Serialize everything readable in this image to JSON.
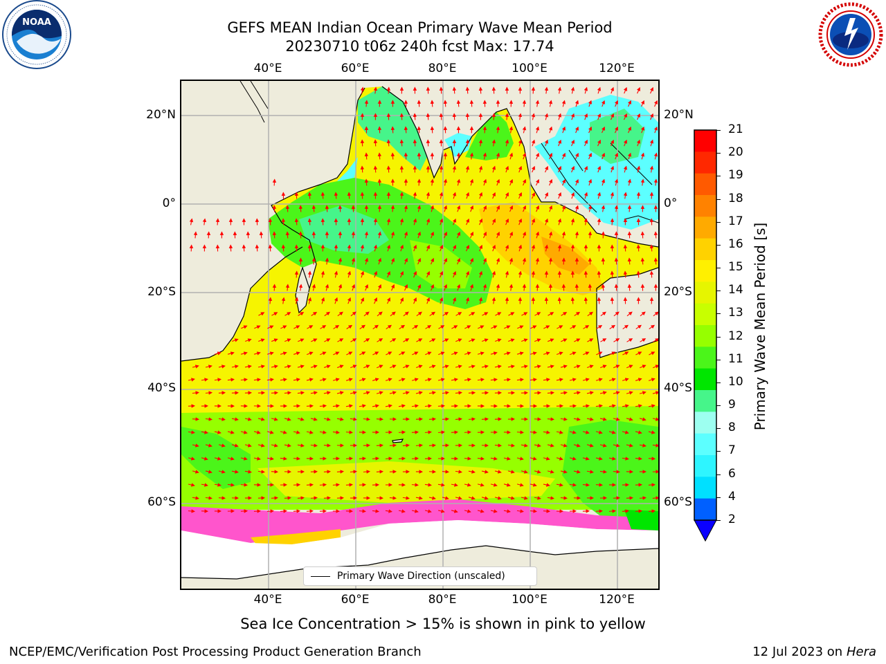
{
  "title": {
    "line1": "GEFS MEAN Indian Ocean Primary Wave Mean Period",
    "line2": "20230710 t06z 240h fcst   Max: 17.74"
  },
  "logos": {
    "left": {
      "icon": "noaa-logo-icon",
      "text": "NOAA",
      "ring_text": "NATIONAL OCEANIC AND ATMOSPHERIC ADMINISTRATION · U.S. DEPARTMENT OF COMMERCE"
    },
    "right": {
      "icon": "nws-logo-icon",
      "ring_text": "NATIONAL WEATHER SERVICE"
    }
  },
  "map": {
    "lon_ticks_top": [
      "40°E",
      "60°E",
      "80°E",
      "100°E",
      "120°E"
    ],
    "lon_ticks_bottom": [
      "40°E",
      "60°E",
      "80°E",
      "100°E",
      "120°E"
    ],
    "lat_ticks_left": [
      "20°N",
      "0°",
      "20°S",
      "40°S",
      "60°S"
    ],
    "lat_ticks_right": [
      "20°N",
      "0°",
      "20°S",
      "40°S",
      "60°S"
    ],
    "legend_label": "Primary Wave Direction (unscaled)",
    "arrow_color": "#ff0000",
    "land_color": "#eeecdc",
    "sea_ice_note": "Sea Ice Concentration > 15% is shown in pink to yellow"
  },
  "colorbar": {
    "label": "Primary Wave Mean Period [s]",
    "ticks": [
      "2",
      "4",
      "6",
      "7",
      "8",
      "9",
      "10",
      "11",
      "12",
      "13",
      "14",
      "15",
      "16",
      "17",
      "18",
      "19",
      "20",
      "21"
    ],
    "colors": [
      "#0060ff",
      "#00e0ff",
      "#2ef5ff",
      "#5cffff",
      "#9dfff0",
      "#46f58a",
      "#00e600",
      "#4bf51a",
      "#96ff00",
      "#c8ff00",
      "#e6f500",
      "#fff000",
      "#ffd200",
      "#ffaa00",
      "#ff8200",
      "#ff5a00",
      "#ff2800",
      "#ff0000"
    ],
    "extend_color": "#0a00ff"
  },
  "footer": {
    "left": "NCEP/EMC/Verification Post Processing Product Generation Branch",
    "right_date": "12 Jul 2023 on ",
    "right_machine": "Hera"
  }
}
